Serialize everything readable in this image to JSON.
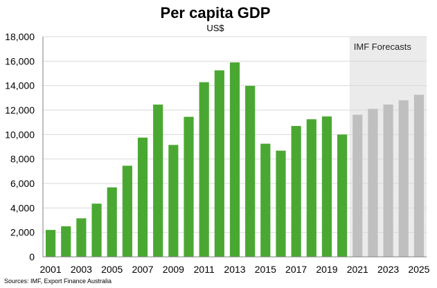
{
  "chart_data": {
    "type": "bar",
    "title": "Per capita GDP",
    "subtitle": "US$",
    "source": "Sources: IMF, Export Finance Australia",
    "forecast_label": "IMF Forecasts",
    "forecast_start": "2021",
    "categories": [
      "2001",
      "2002",
      "2003",
      "2004",
      "2005",
      "2006",
      "2007",
      "2008",
      "2009",
      "2010",
      "2011",
      "2012",
      "2013",
      "2014",
      "2015",
      "2016",
      "2017",
      "2018",
      "2019",
      "2020",
      "2021",
      "2022",
      "2023",
      "2024",
      "2025"
    ],
    "values": [
      2200,
      2500,
      3150,
      4350,
      5680,
      7450,
      9750,
      12450,
      9150,
      11450,
      14280,
      15250,
      15900,
      13980,
      9250,
      8680,
      10700,
      11250,
      11480,
      10000,
      11620,
      12100,
      12450,
      12800,
      13250
    ],
    "x_tick_labels": [
      "2001",
      "2003",
      "2005",
      "2007",
      "2009",
      "2011",
      "2013",
      "2015",
      "2017",
      "2019",
      "2021",
      "2023",
      "2025"
    ],
    "y_tick_labels": [
      "0",
      "2,000",
      "4,000",
      "6,000",
      "8,000",
      "10,000",
      "12,000",
      "14,000",
      "16,000",
      "18,000"
    ],
    "ylim": [
      0,
      18000
    ],
    "grid": true,
    "colors": {
      "actual": "#4aa832",
      "forecast": "#bfbfbf",
      "forecast_band": "#ebebeb",
      "grid": "#d9d9d9"
    }
  }
}
